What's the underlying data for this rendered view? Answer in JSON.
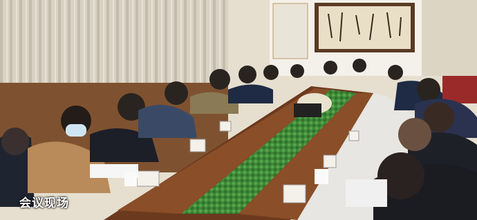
{
  "caption": "会议现场"
}
